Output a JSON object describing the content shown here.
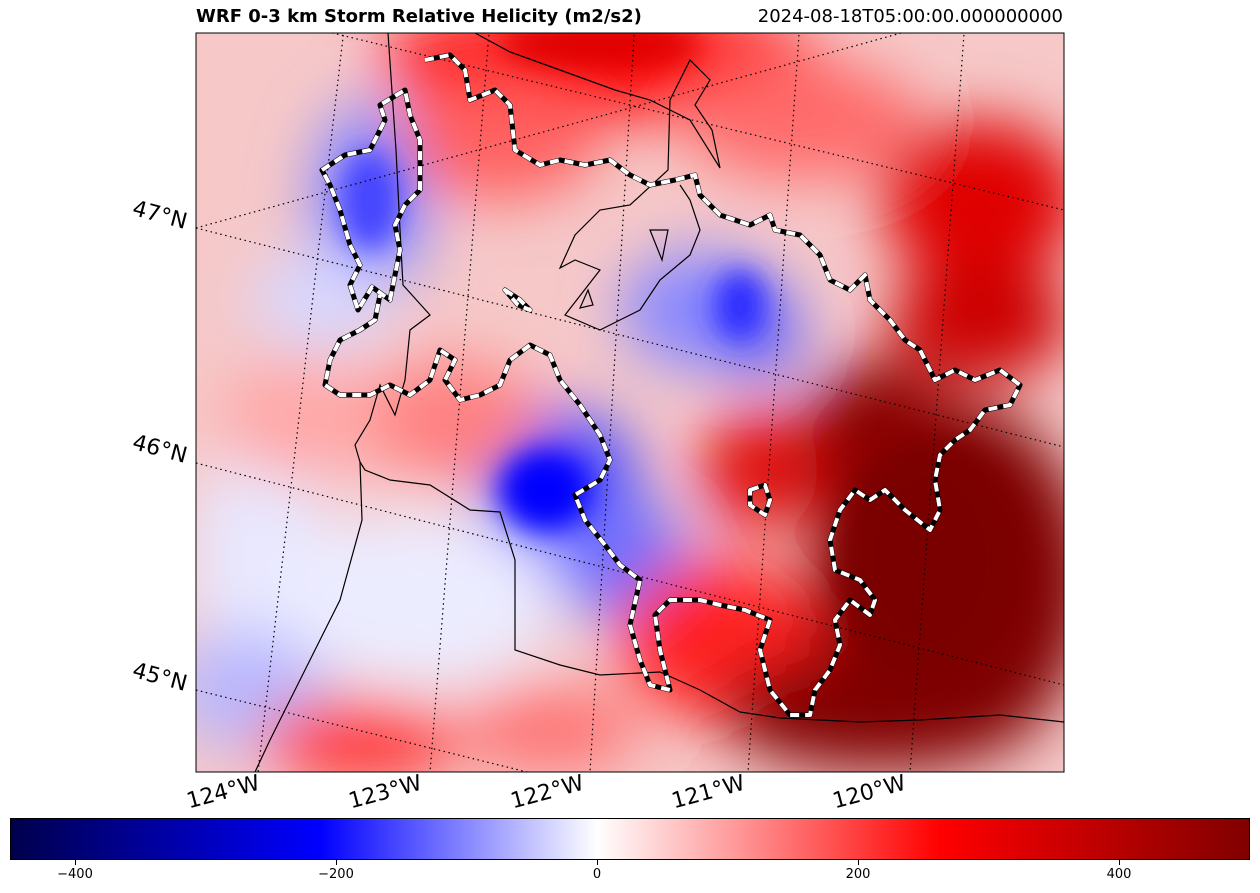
{
  "title": "WRF 0-3 km Storm Relative Helicity (m2/s2)",
  "timestamp": "2024-08-18T05:00:00.000000000",
  "lat_labels": [
    "47°N",
    "46°N",
    "45°N"
  ],
  "lon_labels": [
    "124°W",
    "123°W",
    "122°W",
    "121°W",
    "120°W"
  ],
  "colorbar": {
    "min": -450,
    "max": 500,
    "ticks": [
      -400,
      -200,
      0,
      200,
      400
    ],
    "tick_labels": [
      "−400",
      "−200",
      "0",
      "200",
      "400"
    ],
    "colormap": "seismic",
    "colors": {
      "low": "#00004c",
      "mid_low": "#0000ff",
      "zero": "#ffffff",
      "mid_high": "#ff0000",
      "high": "#800000"
    }
  }
}
